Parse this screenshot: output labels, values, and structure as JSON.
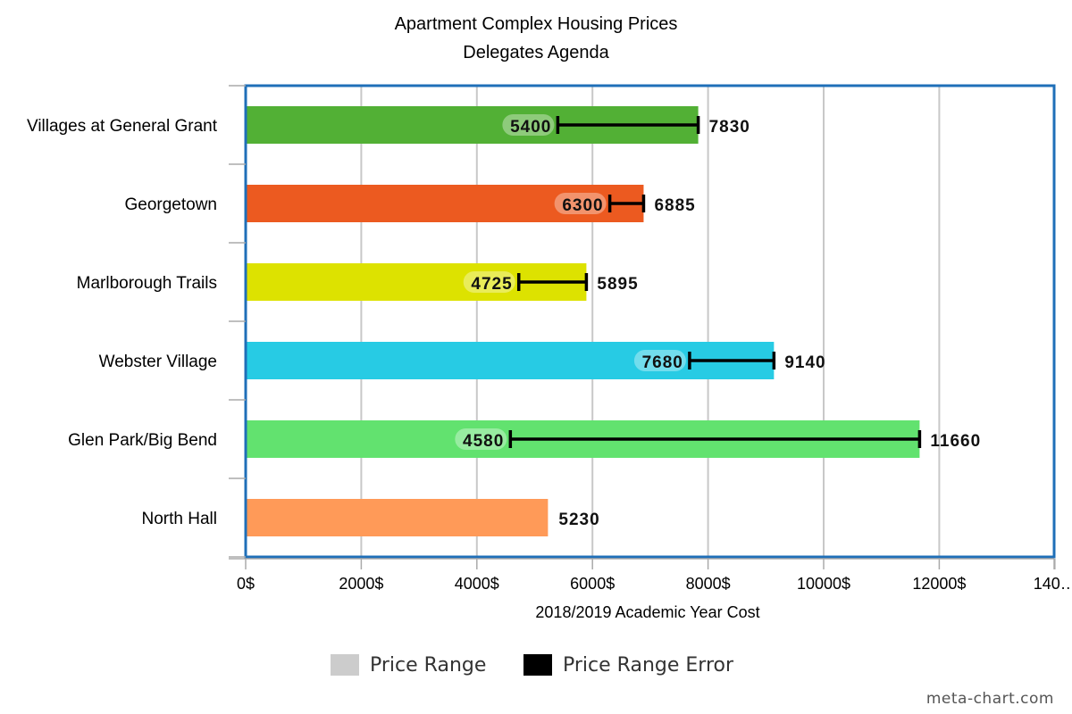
{
  "chart_data": {
    "type": "bar",
    "orientation": "horizontal",
    "title": "Apartment Complex Housing Prices",
    "subtitle": "Delegates Agenda",
    "xlabel": "2018/2019 Academic Year Cost",
    "ylabel": "",
    "xlim": [
      0,
      14000
    ],
    "x_ticks": [
      "0$",
      "2000$",
      "4000$",
      "6000$",
      "8000$",
      "10000$",
      "12000$",
      "140…"
    ],
    "grid": true,
    "categories": [
      "Villages at General Grant",
      "Georgetown",
      "Marlborough Trails",
      "Webster Village",
      "Glen Park/Big Bend",
      "North Hall"
    ],
    "series": [
      {
        "name": "Price Range",
        "values": [
          7830,
          6885,
          5895,
          9140,
          11660,
          5230
        ],
        "colors": [
          "#52b035",
          "#ec5a20",
          "#dde200",
          "#27cbe4",
          "#62e26f",
          "#ff9a58"
        ]
      },
      {
        "name": "Price Range Error",
        "low": [
          5400,
          6300,
          4725,
          7680,
          4580,
          null
        ],
        "high": [
          7830,
          6885,
          5895,
          9140,
          11660,
          null
        ],
        "color": "#000000"
      }
    ],
    "legend": {
      "placement": "bottom",
      "items": [
        {
          "label": "Price Range",
          "color": "#cccccc"
        },
        {
          "label": "Price Range Error",
          "color": "#000000"
        }
      ]
    },
    "frame_color": "#1f6fb8"
  },
  "watermark": "meta-chart.com"
}
